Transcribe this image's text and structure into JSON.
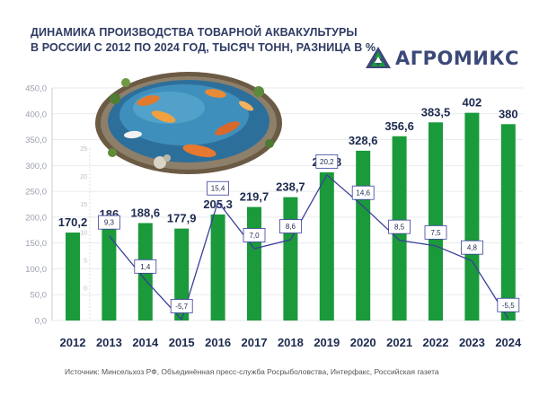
{
  "title": {
    "line1": "ДИНАМИКА ПРОИЗВОДСТВА ТОВАРНОЙ АКВАКУЛЬТУРЫ",
    "line2": "В РОССИИ С 2012 ПО 2024 ГОД, ТЫСЯЧ ТОНН, РАЗНИЦА В %"
  },
  "brand": {
    "name": "АГРОМИКС",
    "icon": "triangle-logo-icon"
  },
  "source": "Источник: Минсельхоз РФ, Объединённая пресс-служба Росрыболовства, Интерфакс, Российская газета",
  "illustration": {
    "icon": "koi-pond-illustration"
  },
  "colors": {
    "bar": "#1a9a3a",
    "line": "#3a3f9a",
    "title": "#2e3b63",
    "grid": "#e8eaee"
  },
  "chart_data": {
    "type": "bar",
    "categories": [
      "2012",
      "2013",
      "2014",
      "2015",
      "2016",
      "2017",
      "2018",
      "2019",
      "2020",
      "2021",
      "2022",
      "2023",
      "2024"
    ],
    "values": [
      170.2,
      186,
      188.6,
      177.9,
      205.3,
      219.7,
      238.7,
      286.8,
      328.6,
      356.6,
      383.5,
      402,
      380
    ],
    "value_labels": [
      "170,2",
      "186",
      "188,6",
      "177,9",
      "205,3",
      "219,7",
      "238,7",
      "286,8",
      "328,6",
      "356,6",
      "383,5",
      "402",
      "380"
    ],
    "ylim": [
      0,
      450
    ],
    "yticks": [
      "0,0",
      "50,0",
      "100,0",
      "150,0",
      "200,0",
      "250,0",
      "300,0",
      "350,0",
      "400,0",
      "450,0"
    ],
    "grid": true,
    "change_series": {
      "type": "line",
      "values": [
        9.3,
        1.4,
        -5.7,
        15.4,
        7.0,
        8.6,
        20.2,
        14.6,
        8.5,
        7.5,
        4.8,
        -5.5
      ],
      "labels": [
        "9,3",
        "1,4",
        "-5,7",
        "15,4",
        "7,0",
        "8,6",
        "20,2",
        "14,6",
        "8,5",
        "7,5",
        "4,8",
        "-5,5"
      ],
      "categories": [
        "2013",
        "2014",
        "2015",
        "2016",
        "2017",
        "2018",
        "2019",
        "2020",
        "2021",
        "2022",
        "2023",
        "2024"
      ],
      "ylim": [
        -5.7,
        25
      ],
      "yticks": [
        "0",
        "5",
        "10",
        "15",
        "20",
        "25"
      ]
    }
  }
}
